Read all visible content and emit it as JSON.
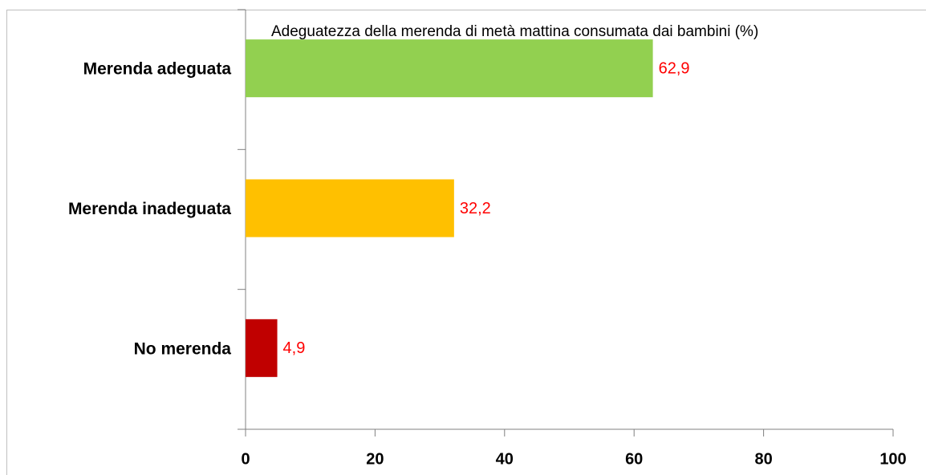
{
  "chart_data": {
    "type": "bar",
    "orientation": "horizontal",
    "title": "Adeguatezza della merenda di metà mattina consumata dai bambini (%)",
    "categories": [
      "Merenda adeguata",
      "Merenda inadeguata",
      "No merenda"
    ],
    "values": [
      62.9,
      32.2,
      4.9
    ],
    "value_labels": [
      "62,9",
      "32,2",
      "4,9"
    ],
    "colors": [
      "#92d050",
      "#ffc000",
      "#c00000"
    ],
    "xlim": [
      0,
      100
    ],
    "xticks": [
      0,
      20,
      40,
      60,
      80,
      100
    ],
    "grid": false
  }
}
